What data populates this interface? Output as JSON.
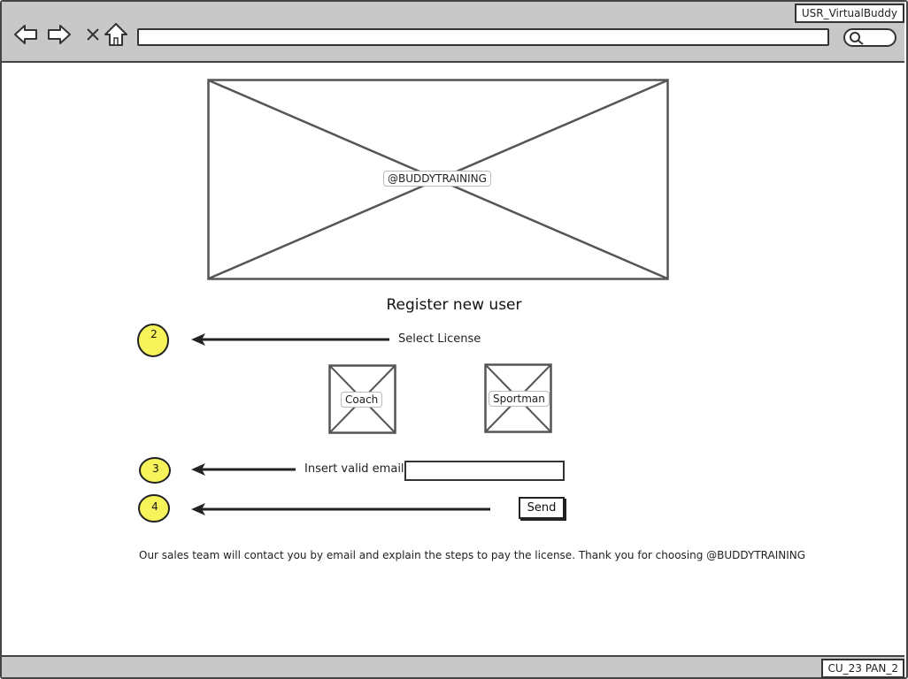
{
  "window": {
    "title": "USR_VirtualBuddy",
    "url": "",
    "footer_id": "CU_23 PAN_2"
  },
  "nav": {
    "back_icon": "back-arrow-icon",
    "forward_icon": "forward-arrow-icon",
    "stop_icon": "close-icon",
    "home_icon": "home-icon",
    "search_icon": "search-icon"
  },
  "banner": {
    "label": "@BUDDYTRAINING"
  },
  "page": {
    "heading": "Register new user"
  },
  "steps": {
    "license": {
      "badge": "2",
      "label": "Select License"
    },
    "email": {
      "badge": "3",
      "label": "Insert valid email",
      "value": "",
      "placeholder": ""
    },
    "send": {
      "badge": "4",
      "button": "Send"
    }
  },
  "licenses": [
    {
      "label": "Coach"
    },
    {
      "label": "Sportman"
    }
  ],
  "footer": {
    "message": "Our sales team will contact you by email and explain the steps to pay the license. Thank you for choosing  @BUDDYTRAINING"
  },
  "colors": {
    "chrome": "#c8c8c8",
    "badge": "#f7f35a",
    "outline": "#333333"
  }
}
